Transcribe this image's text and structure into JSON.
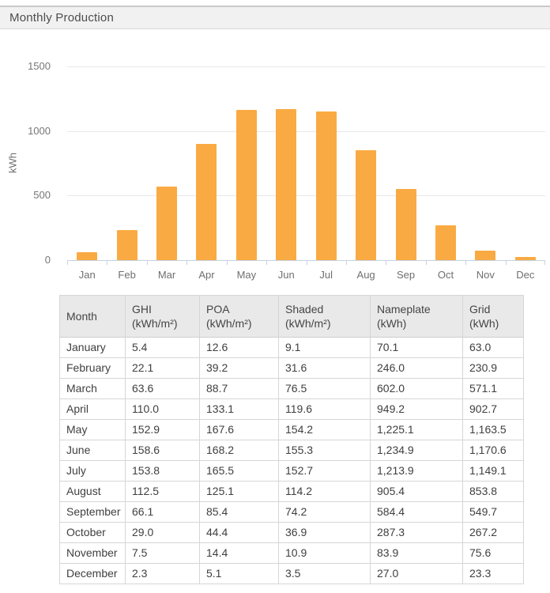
{
  "header": {
    "title": "Monthly Production"
  },
  "chart_data": {
    "type": "bar",
    "title": "",
    "xlabel": "",
    "ylabel": "kWh",
    "categories": [
      "Jan",
      "Feb",
      "Mar",
      "Apr",
      "May",
      "Jun",
      "Jul",
      "Aug",
      "Sep",
      "Oct",
      "Nov",
      "Dec"
    ],
    "values": [
      63.0,
      230.9,
      571.1,
      902.7,
      1163.5,
      1170.6,
      1149.1,
      853.8,
      549.7,
      267.2,
      75.6,
      23.3
    ],
    "ylim": [
      0,
      1500
    ],
    "yticks": [
      0,
      500,
      1000,
      1500
    ],
    "grid": true,
    "legend_position": "none",
    "bar_color": "#FAAA42"
  },
  "table": {
    "columns": [
      {
        "label": "Month",
        "unit": ""
      },
      {
        "label": "GHI",
        "unit": "(kWh/m²)"
      },
      {
        "label": "POA",
        "unit": "(kWh/m²)"
      },
      {
        "label": "Shaded",
        "unit": "(kWh/m²)"
      },
      {
        "label": "Nameplate",
        "unit": "(kWh)"
      },
      {
        "label": "Grid",
        "unit": "(kWh)"
      }
    ],
    "rows": [
      [
        "January",
        "5.4",
        "12.6",
        "9.1",
        "70.1",
        "63.0"
      ],
      [
        "February",
        "22.1",
        "39.2",
        "31.6",
        "246.0",
        "230.9"
      ],
      [
        "March",
        "63.6",
        "88.7",
        "76.5",
        "602.0",
        "571.1"
      ],
      [
        "April",
        "110.0",
        "133.1",
        "119.6",
        "949.2",
        "902.7"
      ],
      [
        "May",
        "152.9",
        "167.6",
        "154.2",
        "1,225.1",
        "1,163.5"
      ],
      [
        "June",
        "158.6",
        "168.2",
        "155.3",
        "1,234.9",
        "1,170.6"
      ],
      [
        "July",
        "153.8",
        "165.5",
        "152.7",
        "1,213.9",
        "1,149.1"
      ],
      [
        "August",
        "112.5",
        "125.1",
        "114.2",
        "905.4",
        "853.8"
      ],
      [
        "September",
        "66.1",
        "85.4",
        "74.2",
        "584.4",
        "549.7"
      ],
      [
        "October",
        "29.0",
        "44.4",
        "36.9",
        "287.3",
        "267.2"
      ],
      [
        "November",
        "7.5",
        "14.4",
        "10.9",
        "83.9",
        "75.6"
      ],
      [
        "December",
        "2.3",
        "5.1",
        "3.5",
        "27.0",
        "23.3"
      ]
    ]
  },
  "colors": {
    "bar": "#FAAA42",
    "header_bar_bg": "#f1f1f1",
    "gridline": "#e8e8e8",
    "axis_line": "#c7d1e0",
    "table_header_bg": "#e9e9e9"
  }
}
